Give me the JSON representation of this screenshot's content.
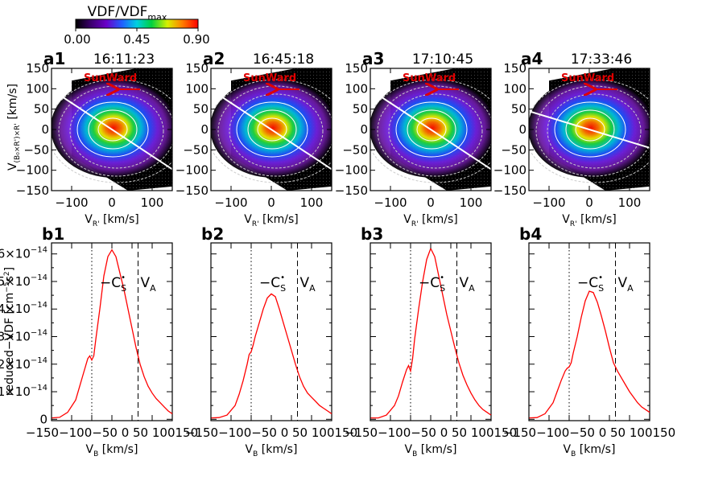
{
  "colorbar": {
    "title": "VDF/VDF",
    "title_sub": "max",
    "ticks": [
      "0.00",
      "0.45",
      "0.90"
    ]
  },
  "top_panels": [
    {
      "label": "a1",
      "time": "16:11:23"
    },
    {
      "label": "a2",
      "time": "16:45:18"
    },
    {
      "label": "a3",
      "time": "17:10:45"
    },
    {
      "label": "a4",
      "time": "17:33:46"
    }
  ],
  "bottom_panels": [
    {
      "label": "b1"
    },
    {
      "label": "b2"
    },
    {
      "label": "b3"
    },
    {
      "label": "b4"
    }
  ],
  "top_axes": {
    "xlabel": "V",
    "xlabel_sub": "R'",
    "xlabel_unit": " [km/s]",
    "ylabel": "V",
    "ylabel_sub": "(B₀×R')×R'",
    "ylabel_unit": " [km/s]",
    "xticks": [
      "−100",
      "0",
      "100"
    ],
    "yticks": [
      "150",
      "100",
      "50",
      "0",
      "−50",
      "−100",
      "−150"
    ],
    "sunward_label": "SunWard",
    "sunward_color": "#e00000"
  },
  "bottom_axes": {
    "xlabel": "V",
    "xlabel_sub": "B",
    "xlabel_unit": " [km/s]",
    "ylabel": "reduced−VDF [cm",
    "ylabel_sup1": "−5",
    "ylabel_mid": "s",
    "ylabel_sup2": "2",
    "ylabel_end": "]",
    "xtick_text": "−150−100−50  0   50 100150",
    "ytick_mant": "×10",
    "ytick_exp": "−14",
    "yticks": [
      "6",
      "5",
      "4",
      "3",
      "2",
      "1",
      "0"
    ],
    "cs_label": "−C",
    "cs_sub": "S",
    "cs_sup": "•",
    "va_label": "V",
    "va_sub": "A",
    "line_color": "#ff0000"
  },
  "chart_data": [
    {
      "type": "heatmap",
      "panel": "a1",
      "title": "16:11:23",
      "xlim": [
        -150,
        150
      ],
      "ylim": [
        -150,
        150
      ],
      "peak": [
        0,
        0
      ],
      "field_line_slope": -0.65
    },
    {
      "type": "heatmap",
      "panel": "a2",
      "title": "16:45:18",
      "xlim": [
        -150,
        150
      ],
      "ylim": [
        -150,
        150
      ],
      "peak": [
        0,
        0
      ],
      "field_line_slope": -0.65
    },
    {
      "type": "heatmap",
      "panel": "a3",
      "title": "17:10:45",
      "xlim": [
        -150,
        150
      ],
      "ylim": [
        -150,
        150
      ],
      "peak": [
        0,
        0
      ],
      "field_line_slope": -0.65
    },
    {
      "type": "heatmap",
      "panel": "a4",
      "title": "17:33:46",
      "xlim": [
        -150,
        150
      ],
      "ylim": [
        -150,
        150
      ],
      "peak": [
        0,
        0
      ],
      "field_line_slope": -0.3
    },
    {
      "type": "line",
      "panel": "b1",
      "xlim": [
        -150,
        150
      ],
      "ylim": [
        -0.05,
        6.4
      ],
      "unit": "1e-14 cm^-5 s^2",
      "cs_x": -50,
      "va_x": 65,
      "x": [
        -150,
        -130,
        -110,
        -90,
        -80,
        -70,
        -60,
        -55,
        -50,
        -45,
        -40,
        -30,
        -20,
        -10,
        0,
        10,
        20,
        30,
        40,
        50,
        60,
        70,
        80,
        90,
        100,
        110,
        120,
        130,
        140,
        150
      ],
      "y": [
        0.05,
        0.07,
        0.25,
        0.7,
        1.2,
        1.7,
        2.2,
        2.3,
        2.15,
        2.3,
        2.9,
        4.0,
        5.2,
        5.9,
        6.15,
        5.9,
        5.3,
        4.7,
        4.0,
        3.3,
        2.6,
        2.0,
        1.55,
        1.2,
        0.95,
        0.75,
        0.6,
        0.45,
        0.3,
        0.2
      ]
    },
    {
      "type": "line",
      "panel": "b2",
      "xlim": [
        -150,
        150
      ],
      "ylim": [
        -0.05,
        6.4
      ],
      "unit": "1e-14 cm^-5 s^2",
      "cs_x": -50,
      "va_x": 65,
      "x": [
        -150,
        -130,
        -110,
        -90,
        -80,
        -70,
        -60,
        -55,
        -50,
        -45,
        -40,
        -30,
        -20,
        -10,
        0,
        10,
        20,
        30,
        40,
        50,
        60,
        70,
        80,
        90,
        100,
        110,
        120,
        130,
        140,
        150
      ],
      "y": [
        0.05,
        0.06,
        0.15,
        0.5,
        0.9,
        1.4,
        2.0,
        2.35,
        2.45,
        2.7,
        3.0,
        3.5,
        4.0,
        4.4,
        4.55,
        4.45,
        4.0,
        3.5,
        3.0,
        2.5,
        2.0,
        1.55,
        1.2,
        0.95,
        0.8,
        0.65,
        0.5,
        0.4,
        0.3,
        0.2
      ]
    },
    {
      "type": "line",
      "panel": "b3",
      "xlim": [
        -150,
        150
      ],
      "ylim": [
        -0.05,
        6.4
      ],
      "unit": "1e-14 cm^-5 s^2",
      "cs_x": -50,
      "va_x": 65,
      "x": [
        -150,
        -130,
        -110,
        -90,
        -80,
        -70,
        -60,
        -55,
        -50,
        -45,
        -40,
        -30,
        -20,
        -10,
        0,
        10,
        20,
        30,
        40,
        50,
        60,
        70,
        80,
        90,
        100,
        110,
        120,
        130,
        140,
        150
      ],
      "y": [
        0.05,
        0.05,
        0.15,
        0.5,
        0.85,
        1.35,
        1.8,
        1.95,
        1.75,
        2.2,
        2.9,
        4.0,
        5.0,
        5.8,
        6.2,
        5.9,
        5.2,
        4.5,
        3.8,
        3.2,
        2.6,
        2.05,
        1.6,
        1.25,
        0.95,
        0.7,
        0.5,
        0.35,
        0.25,
        0.15
      ]
    },
    {
      "type": "line",
      "panel": "b4",
      "xlim": [
        -150,
        150
      ],
      "ylim": [
        -0.05,
        6.4
      ],
      "unit": "1e-14 cm^-5 s^2",
      "cs_x": -50,
      "va_x": 65,
      "x": [
        -150,
        -130,
        -110,
        -90,
        -80,
        -70,
        -60,
        -55,
        -50,
        -45,
        -40,
        -30,
        -20,
        -10,
        0,
        10,
        20,
        30,
        40,
        50,
        60,
        70,
        80,
        90,
        100,
        110,
        120,
        130,
        140,
        150
      ],
      "y": [
        0.05,
        0.06,
        0.2,
        0.6,
        1.0,
        1.4,
        1.75,
        1.85,
        1.9,
        2.05,
        2.4,
        3.0,
        3.7,
        4.3,
        4.65,
        4.6,
        4.25,
        3.75,
        3.2,
        2.6,
        2.05,
        1.75,
        1.5,
        1.25,
        1.0,
        0.8,
        0.6,
        0.45,
        0.35,
        0.25
      ]
    }
  ]
}
